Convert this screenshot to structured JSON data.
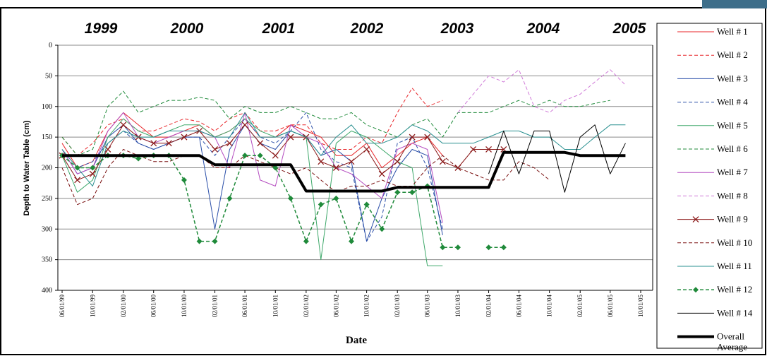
{
  "chart_data": {
    "type": "line",
    "annotations": [
      "1999",
      "2000",
      "2001",
      "2002",
      "2003",
      "2004",
      "2005"
    ],
    "x_label": "Date",
    "y_label": "Depth to Water Table (cm)",
    "ylim": [
      0,
      400
    ],
    "y_inverted": true,
    "yticks": [
      0,
      50,
      100,
      150,
      200,
      250,
      300,
      350,
      400
    ],
    "grid": true,
    "xlim": [
      "05/15/99",
      "11/18/05"
    ],
    "xticks": [
      "06/01/99",
      "10/01/99",
      "02/01/00",
      "06/01/00",
      "10/01/00",
      "02/01/01",
      "06/01/01",
      "10/01/01",
      "02/01/02",
      "06/01/02",
      "10/01/02",
      "02/01/03",
      "06/01/03",
      "10/01/03",
      "02/01/04",
      "06/01/04",
      "10/01/04",
      "02/01/05",
      "06/01/05",
      "10/01/05"
    ],
    "x": [
      "06/01/99",
      "08/01/99",
      "10/01/99",
      "12/01/99",
      "02/01/00",
      "04/01/00",
      "06/01/00",
      "08/01/00",
      "10/01/00",
      "12/01/00",
      "02/01/01",
      "04/01/01",
      "06/01/01",
      "08/01/01",
      "10/01/01",
      "12/01/01",
      "02/01/02",
      "04/01/02",
      "06/01/02",
      "08/01/02",
      "10/01/02",
      "12/01/02",
      "02/01/03",
      "04/01/03",
      "06/01/03",
      "08/01/03",
      "10/01/03",
      "12/01/03",
      "02/01/04",
      "04/01/04",
      "06/01/04",
      "08/01/04",
      "10/01/04",
      "12/01/04",
      "02/01/05",
      "04/01/05",
      "06/01/05",
      "08/01/05"
    ],
    "series": [
      {
        "name": "Well # 1",
        "color": "#e8262a",
        "dash": false,
        "width": 1,
        "marker": null,
        "values": [
          160,
          200,
          190,
          140,
          110,
          130,
          150,
          150,
          140,
          130,
          150,
          140,
          120,
          150,
          150,
          130,
          140,
          150,
          180,
          180,
          160,
          200,
          180,
          160,
          150,
          180,
          null,
          null,
          null,
          null,
          null,
          null,
          null,
          null,
          null,
          null,
          null,
          null
        ]
      },
      {
        "name": "Well # 2",
        "color": "#e8262a",
        "dash": true,
        "width": 1,
        "marker": null,
        "values": [
          150,
          180,
          160,
          130,
          120,
          140,
          140,
          130,
          120,
          125,
          140,
          120,
          110,
          140,
          140,
          130,
          130,
          160,
          170,
          170,
          150,
          160,
          110,
          70,
          100,
          90,
          null,
          null,
          null,
          null,
          null,
          null,
          null,
          null,
          null,
          null,
          null,
          null
        ]
      },
      {
        "name": "Well # 3",
        "color": "#2a4ea8",
        "dash": false,
        "width": 1,
        "marker": null,
        "values": [
          170,
          210,
          200,
          150,
          130,
          160,
          170,
          160,
          150,
          150,
          300,
          170,
          130,
          160,
          170,
          140,
          150,
          180,
          170,
          190,
          320,
          250,
          200,
          170,
          180,
          310,
          null,
          null,
          null,
          null,
          null,
          null,
          null,
          null,
          null,
          null,
          null,
          null
        ]
      },
      {
        "name": "Well # 4",
        "color": "#2a4ea8",
        "dash": true,
        "width": 1,
        "marker": null,
        "values": [
          180,
          200,
          190,
          160,
          140,
          160,
          170,
          160,
          150,
          150,
          180,
          150,
          120,
          150,
          160,
          140,
          110,
          170,
          190,
          200,
          320,
          280,
          160,
          150,
          200,
          300,
          null,
          null,
          null,
          null,
          null,
          null,
          null,
          null,
          null,
          null,
          null,
          null
        ]
      },
      {
        "name": "Well # 5",
        "color": "#3ea86a",
        "dash": false,
        "width": 1,
        "marker": null,
        "values": [
          180,
          240,
          220,
          150,
          120,
          140,
          150,
          140,
          130,
          130,
          150,
          140,
          120,
          140,
          150,
          140,
          150,
          350,
          160,
          140,
          150,
          170,
          190,
          200,
          360,
          360,
          null,
          null,
          null,
          null,
          null,
          null,
          null,
          null,
          null,
          null,
          null,
          null
        ]
      },
      {
        "name": "Well # 6",
        "color": "#1f8a3a",
        "dash": true,
        "width": 1,
        "marker": null,
        "values": [
          150,
          180,
          170,
          100,
          75,
          110,
          100,
          90,
          90,
          85,
          90,
          120,
          100,
          110,
          110,
          100,
          110,
          120,
          120,
          110,
          130,
          140,
          150,
          130,
          120,
          150,
          110,
          110,
          110,
          100,
          90,
          100,
          90,
          100,
          100,
          95,
          90,
          null
        ]
      },
      {
        "name": "Well # 7",
        "color": "#b44cc0",
        "dash": false,
        "width": 1,
        "marker": null,
        "values": [
          170,
          210,
          200,
          140,
          110,
          150,
          160,
          150,
          140,
          140,
          150,
          200,
          110,
          220,
          230,
          130,
          150,
          160,
          200,
          210,
          230,
          250,
          170,
          160,
          170,
          290,
          null,
          null,
          null,
          null,
          null,
          null,
          null,
          null,
          null,
          null,
          null,
          null
        ]
      },
      {
        "name": "Well # 8",
        "color": "#d07ad8",
        "dash": true,
        "width": 1,
        "marker": null,
        "values": [
          null,
          null,
          null,
          null,
          null,
          null,
          null,
          null,
          null,
          null,
          null,
          null,
          null,
          null,
          null,
          null,
          null,
          null,
          null,
          null,
          null,
          null,
          null,
          null,
          null,
          null,
          110,
          80,
          50,
          60,
          40,
          100,
          110,
          90,
          80,
          60,
          40,
          65
        ]
      },
      {
        "name": "Well # 9",
        "color": "#8b1a1a",
        "dash": false,
        "width": 1,
        "marker": "x",
        "values": [
          180,
          220,
          210,
          170,
          130,
          150,
          160,
          160,
          150,
          140,
          170,
          160,
          130,
          160,
          180,
          150,
          150,
          190,
          200,
          190,
          170,
          210,
          190,
          150,
          150,
          190,
          200,
          170,
          170,
          170,
          null,
          null,
          null,
          null,
          null,
          null,
          null,
          null
        ]
      },
      {
        "name": "Well # 10",
        "color": "#7a1010",
        "dash": true,
        "width": 1,
        "marker": null,
        "values": [
          200,
          260,
          250,
          200,
          170,
          180,
          190,
          190,
          180,
          180,
          200,
          200,
          180,
          190,
          200,
          210,
          200,
          220,
          240,
          230,
          230,
          220,
          230,
          230,
          200,
          180,
          200,
          210,
          220,
          220,
          190,
          200,
          220,
          null,
          null,
          null,
          null,
          null
        ]
      },
      {
        "name": "Well # 11",
        "color": "#2a9090",
        "dash": false,
        "width": 1,
        "marker": null,
        "values": [
          170,
          200,
          230,
          160,
          140,
          150,
          150,
          140,
          140,
          140,
          150,
          150,
          110,
          150,
          150,
          140,
          150,
          180,
          150,
          130,
          160,
          160,
          150,
          130,
          140,
          160,
          160,
          160,
          150,
          140,
          140,
          150,
          150,
          170,
          170,
          150,
          130,
          130
        ]
      },
      {
        "name": "Well # 12",
        "color": "#1f8a3a",
        "dash": true,
        "width": 1.5,
        "marker": "diamond",
        "values": [
          180,
          200,
          200,
          180,
          180,
          185,
          180,
          180,
          220,
          320,
          320,
          250,
          180,
          180,
          200,
          250,
          320,
          260,
          250,
          320,
          260,
          300,
          240,
          240,
          230,
          330,
          330,
          null,
          330,
          330,
          null,
          null,
          null,
          null,
          null,
          null,
          null,
          null
        ]
      },
      {
        "name": "Well # 14",
        "color": "#000000",
        "dash": false,
        "width": 1,
        "marker": null,
        "values": [
          null,
          null,
          null,
          null,
          null,
          null,
          null,
          null,
          null,
          null,
          null,
          null,
          null,
          null,
          null,
          null,
          null,
          null,
          null,
          null,
          null,
          null,
          null,
          null,
          null,
          null,
          null,
          null,
          210,
          140,
          210,
          140,
          140,
          240,
          150,
          130,
          210,
          160
        ]
      },
      {
        "name": "Overall Average",
        "color": "#000000",
        "dash": false,
        "width": 4,
        "marker": null,
        "values": [
          180,
          180,
          180,
          180,
          180,
          180,
          180,
          180,
          180,
          180,
          195,
          195,
          195,
          195,
          195,
          195,
          238,
          238,
          238,
          238,
          238,
          238,
          232,
          232,
          232,
          232,
          232,
          232,
          232,
          175,
          175,
          175,
          175,
          175,
          180,
          180,
          180,
          180
        ]
      }
    ]
  }
}
